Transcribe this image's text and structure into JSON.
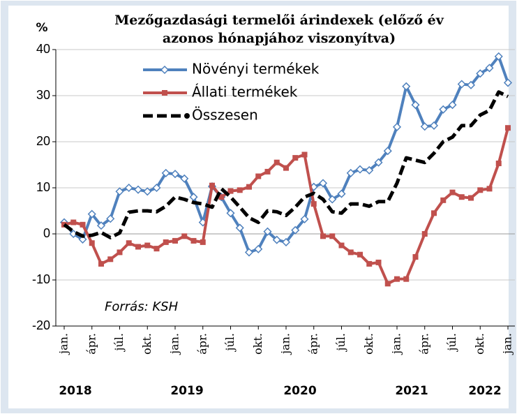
{
  "chart_data": {
    "type": "line",
    "title": [
      "Mezőgazdasági termelői árindexek (előző év",
      "azonos hónapjához viszonyítva)"
    ],
    "y_label": "%",
    "annotation": "Forrás: KSH",
    "categories": [
      "jan.",
      null,
      null,
      "ápr.",
      null,
      null,
      "júl.",
      null,
      null,
      "okt.",
      null,
      null,
      "jan.",
      null,
      null,
      "ápr.",
      null,
      null,
      "júl.",
      null,
      null,
      "okt.",
      null,
      null,
      "jan.",
      null,
      null,
      "ápr.",
      null,
      null,
      "júl.",
      null,
      null,
      "okt.",
      null,
      null,
      "jan.",
      null,
      null,
      "ápr.",
      null,
      null,
      "júl.",
      null,
      null,
      "okt.",
      null,
      null,
      "jan."
    ],
    "years": [
      "2018",
      "2019",
      "2020",
      "2021",
      "2022"
    ],
    "series": [
      {
        "name": "Növényi termékek",
        "color": "#4f81bd",
        "marker": "diamond",
        "values": [
          2.5,
          0,
          -1.2,
          4.3,
          1.8,
          3.3,
          9.2,
          10,
          9.6,
          9.2,
          10,
          13.2,
          13,
          12,
          8,
          2.5,
          10.3,
          8,
          4.5,
          1.3,
          -4,
          -3.3,
          0.5,
          -1.3,
          -1.8,
          0.8,
          3.2,
          10.2,
          11,
          7.5,
          8.7,
          13.2,
          14,
          13.8,
          15.5,
          18,
          23.2,
          32,
          28,
          23.3,
          23.5,
          27,
          28,
          32.5,
          32.3,
          34.8,
          36,
          38.5,
          32.8
        ]
      },
      {
        "name": "Állati termékek",
        "color": "#c0504d",
        "marker": "square",
        "values": [
          2,
          2.5,
          2,
          -2,
          -6.5,
          -5.5,
          -4,
          -2,
          -2.8,
          -2.5,
          -3.2,
          -1.8,
          -1.5,
          -0.5,
          -1.5,
          -1.8,
          10.5,
          8,
          9.3,
          9.5,
          10.2,
          12.5,
          13.5,
          15.5,
          14.3,
          16.5,
          17.2,
          6.5,
          -0.5,
          -0.5,
          -2.5,
          -4,
          -4.5,
          -6.5,
          -6.2,
          -10.8,
          -9.8,
          -9.8,
          -5,
          0,
          4.5,
          7.3,
          9,
          8,
          7.8,
          9.5,
          9.8,
          15.3,
          23
        ]
      },
      {
        "name": "Összesen",
        "color": "#000000",
        "marker": "dash",
        "values": [
          2,
          0.5,
          -0.5,
          -0.3,
          0.3,
          -0.8,
          0.2,
          4.7,
          5,
          5,
          4.8,
          6,
          8,
          7.5,
          6.8,
          6.5,
          5.8,
          9.8,
          8,
          5.8,
          3.5,
          2.5,
          5,
          4.8,
          4,
          5.8,
          8,
          8.8,
          7.5,
          4.8,
          4.5,
          6.5,
          6.5,
          6,
          7,
          7,
          11,
          16.5,
          16,
          15.5,
          17.5,
          20,
          21,
          23.5,
          23.5,
          25.8,
          26.8,
          30.8,
          29.8
        ]
      }
    ],
    "ylim": [
      -20,
      40
    ],
    "yticks": [
      -20,
      -10,
      0,
      10,
      20,
      30,
      40
    ],
    "grid": true
  }
}
